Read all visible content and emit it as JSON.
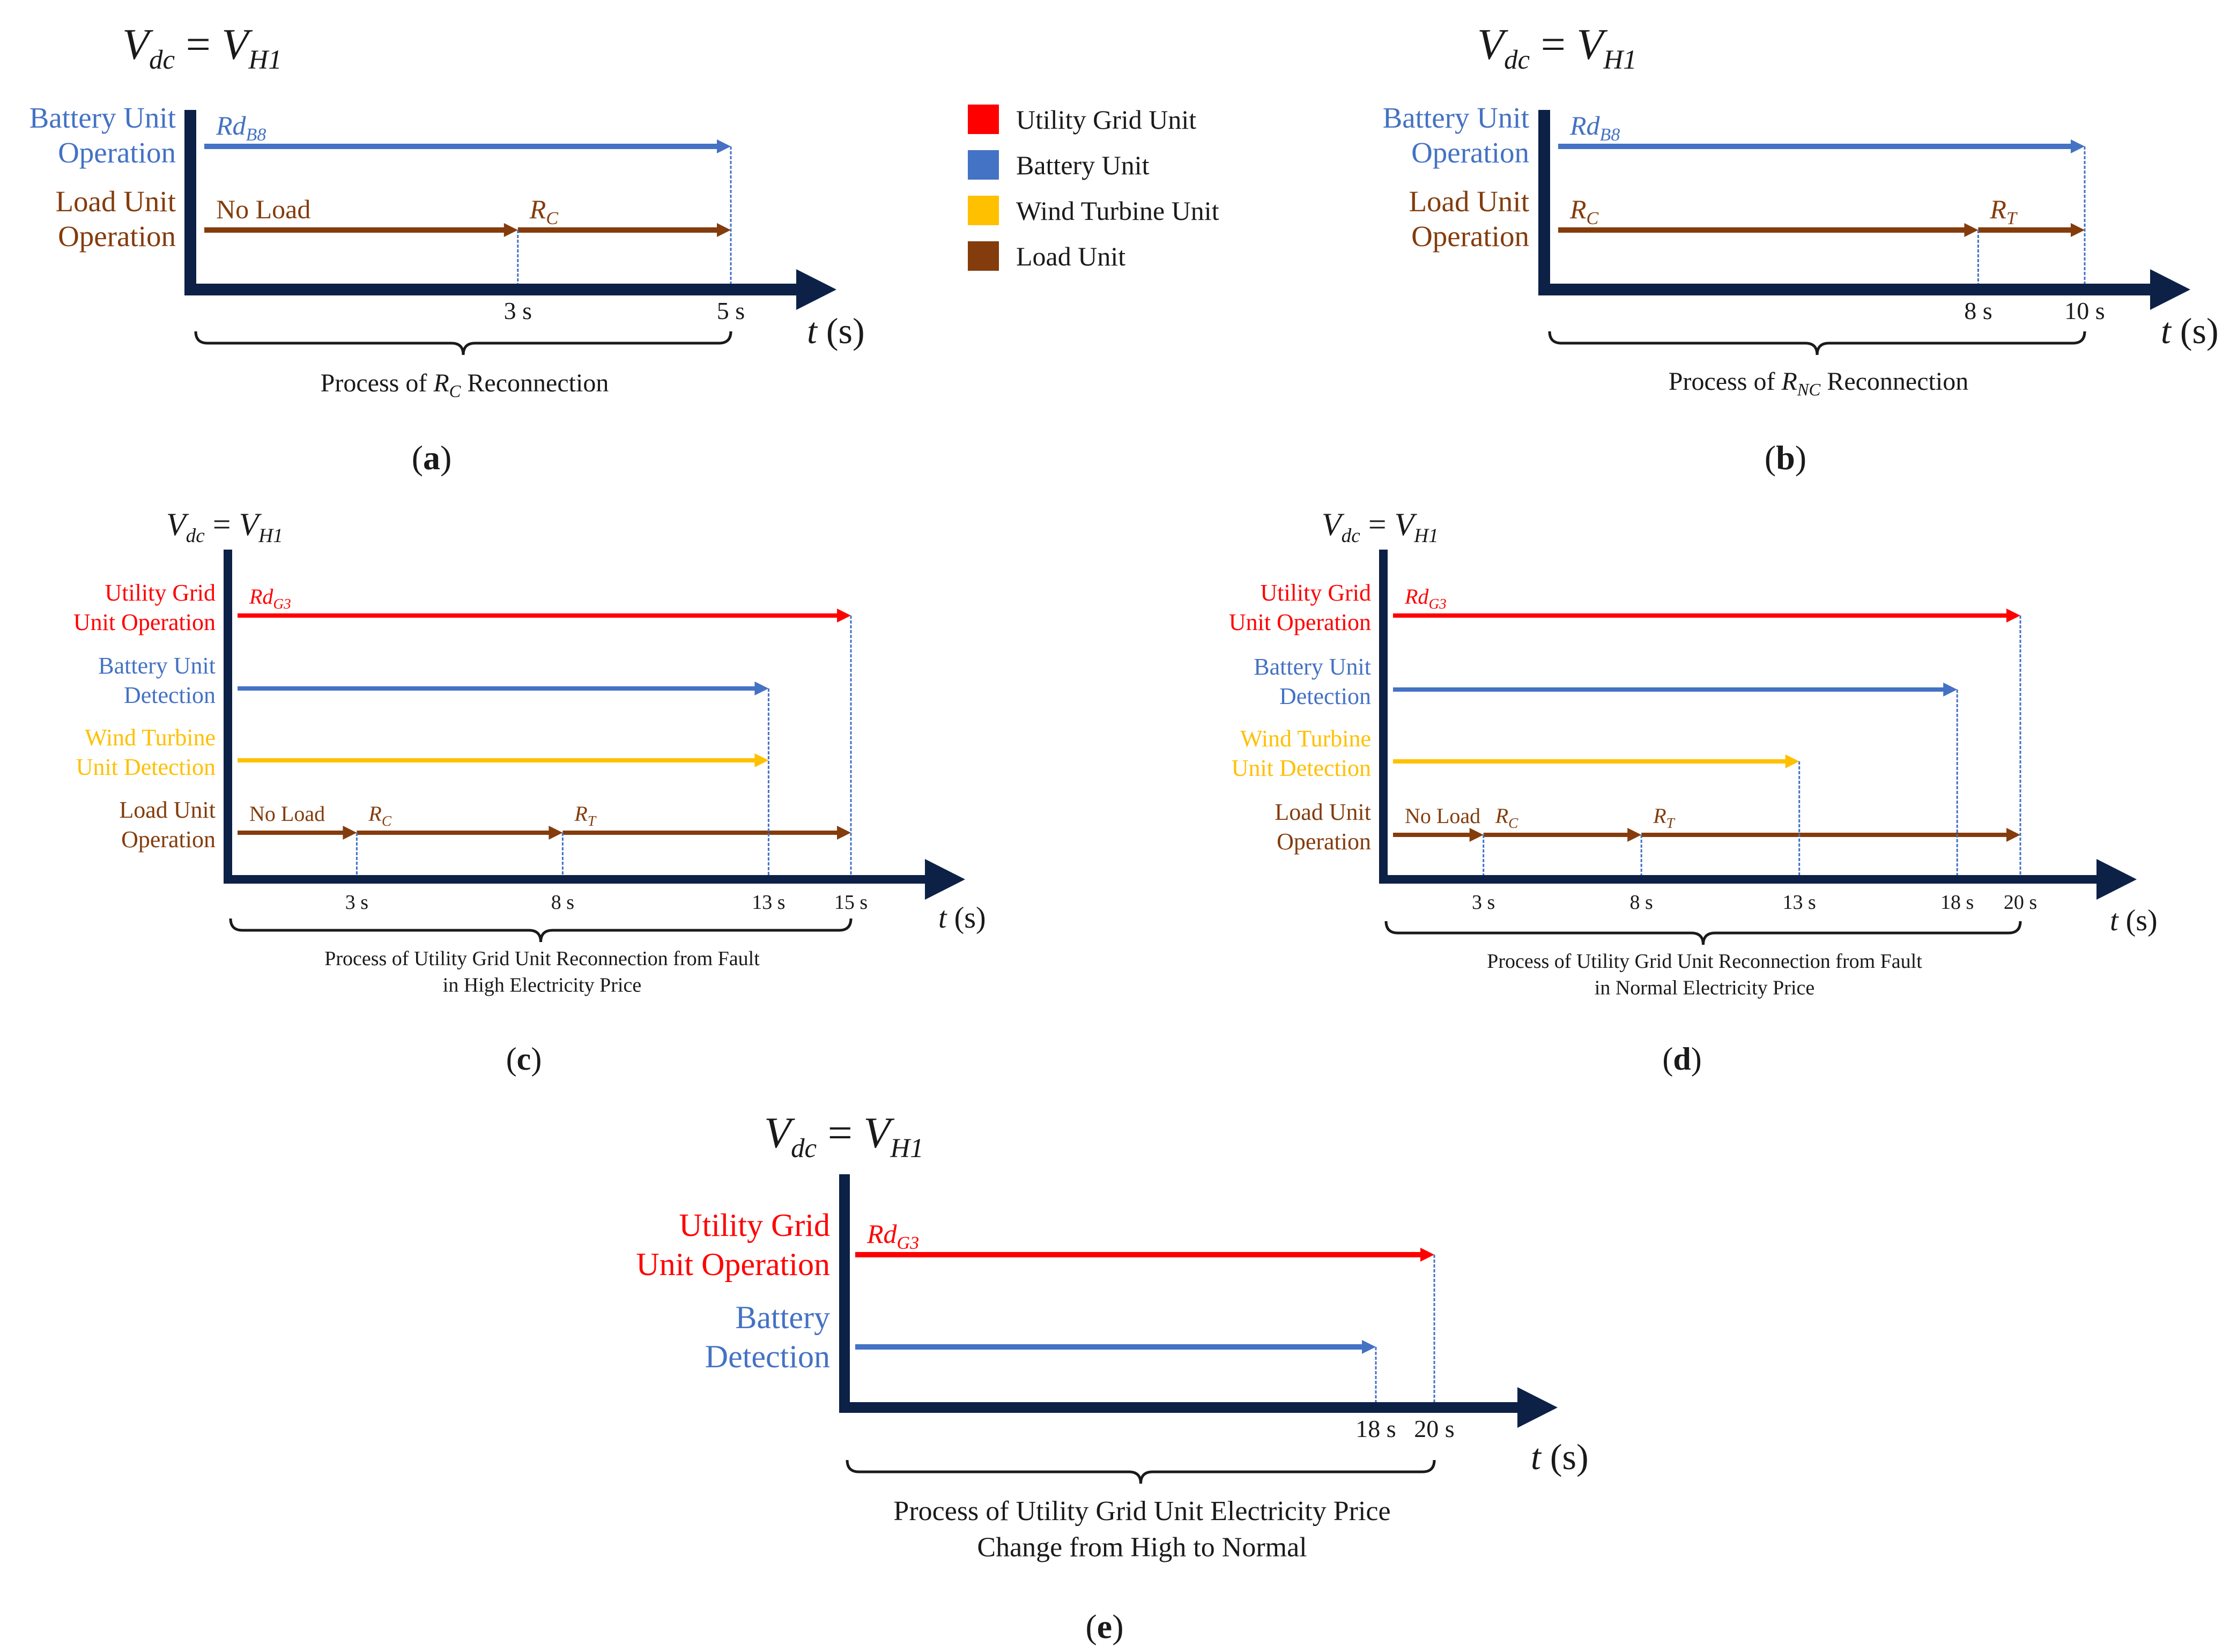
{
  "colors": {
    "axis": "#0d2147",
    "utility": "#ff0000",
    "battery": "#4472c4",
    "wind": "#ffc000",
    "load": "#843c0c",
    "text": "#1a1a1a"
  },
  "legend": [
    {
      "label": "Utility Grid Unit",
      "color": "utility"
    },
    {
      "label": "Battery Unit",
      "color": "battery"
    },
    {
      "label": "Wind Turbine Unit",
      "color": "wind"
    },
    {
      "label": "Load Unit",
      "color": "load"
    }
  ],
  "panels": [
    {
      "id": "a",
      "label": "(a)",
      "title_parts": {
        "v": "V",
        "vsub": "dc",
        "eq": " = ",
        "vh": "V",
        "vhsub": "H1"
      },
      "time_unit": "t (s)",
      "process_parts": [
        "Process of ",
        "R",
        "C",
        " Reconnection"
      ],
      "rows": [
        {
          "label": [
            "Battery Unit",
            "Operation"
          ],
          "color": "battery",
          "segments": [
            {
              "from": 0,
              "to": 5,
              "text": "Rd",
              "sub": "B8"
            }
          ]
        },
        {
          "label": [
            "Load Unit",
            "Operation"
          ],
          "color": "load",
          "segments": [
            {
              "from": 0,
              "to": 3,
              "text": "No Load",
              "sub": ""
            },
            {
              "from": 3,
              "to": 5,
              "text": "R",
              "sub": "C"
            }
          ]
        }
      ],
      "ticks": [
        {
          "t": 3,
          "label": "3 s"
        },
        {
          "t": 5,
          "label": "5 s"
        }
      ]
    },
    {
      "id": "b",
      "label": "(b)",
      "title_parts": {
        "v": "V",
        "vsub": "dc",
        "eq": " = ",
        "vh": "V",
        "vhsub": "H1"
      },
      "time_unit": "t (s)",
      "process_parts": [
        "Process of ",
        "R",
        "NC",
        " Reconnection"
      ],
      "rows": [
        {
          "label": [
            "Battery Unit",
            "Operation"
          ],
          "color": "battery",
          "segments": [
            {
              "from": 0,
              "to": 10,
              "text": "Rd",
              "sub": "B8"
            }
          ]
        },
        {
          "label": [
            "Load Unit",
            "Operation"
          ],
          "color": "load",
          "segments": [
            {
              "from": 0,
              "to": 8,
              "text": "R",
              "sub": "C"
            },
            {
              "from": 8,
              "to": 10,
              "text": "R",
              "sub": "T"
            }
          ]
        }
      ],
      "ticks": [
        {
          "t": 8,
          "label": "8 s"
        },
        {
          "t": 10,
          "label": "10 s"
        }
      ]
    },
    {
      "id": "c",
      "label": "(c)",
      "title_parts": {
        "v": "V",
        "vsub": "dc",
        "eq": " = ",
        "vh": "V",
        "vhsub": "H1"
      },
      "time_unit": "t (s)",
      "process_lines": [
        "Process of Utility Grid Unit Reconnection from Fault",
        "in High Electricity Price"
      ],
      "rows": [
        {
          "label": [
            "Utility Grid",
            "Unit Operation"
          ],
          "color": "utility",
          "segments": [
            {
              "from": 0,
              "to": 15,
              "text": "Rd",
              "sub": "G3"
            }
          ]
        },
        {
          "label": [
            "Battery Unit",
            "Detection"
          ],
          "color": "battery",
          "segments": [
            {
              "from": 0,
              "to": 13,
              "text": "",
              "sub": ""
            }
          ]
        },
        {
          "label": [
            "Wind Turbine",
            "Unit Detection"
          ],
          "color": "wind",
          "segments": [
            {
              "from": 0,
              "to": 13,
              "text": "",
              "sub": ""
            }
          ]
        },
        {
          "label": [
            "Load Unit",
            "Operation"
          ],
          "color": "load",
          "segments": [
            {
              "from": 0,
              "to": 3,
              "text": "No Load",
              "sub": ""
            },
            {
              "from": 3,
              "to": 8,
              "text": "R",
              "sub": "C"
            },
            {
              "from": 8,
              "to": 15,
              "text": "R",
              "sub": "T"
            }
          ]
        }
      ],
      "ticks": [
        {
          "t": 3,
          "label": "3 s"
        },
        {
          "t": 8,
          "label": "8 s"
        },
        {
          "t": 13,
          "label": "13 s"
        },
        {
          "t": 15,
          "label": "15 s"
        }
      ]
    },
    {
      "id": "d",
      "label": "(d)",
      "title_parts": {
        "v": "V",
        "vsub": "dc",
        "eq": " = ",
        "vh": "V",
        "vhsub": "H1"
      },
      "time_unit": "t (s)",
      "process_lines": [
        "Process of Utility Grid Unit Reconnection from Fault",
        "in Normal Electricity Price"
      ],
      "rows": [
        {
          "label": [
            "Utility Grid",
            "Unit Operation"
          ],
          "color": "utility",
          "segments": [
            {
              "from": 0,
              "to": 20,
              "text": "Rd",
              "sub": "G3"
            }
          ]
        },
        {
          "label": [
            "Battery Unit",
            "Detection"
          ],
          "color": "battery",
          "segments": [
            {
              "from": 0,
              "to": 18,
              "text": "",
              "sub": ""
            }
          ]
        },
        {
          "label": [
            "Wind Turbine",
            "Unit Detection"
          ],
          "color": "wind",
          "segments": [
            {
              "from": 0,
              "to": 13,
              "text": "",
              "sub": ""
            }
          ]
        },
        {
          "label": [
            "Load Unit",
            "Operation"
          ],
          "color": "load",
          "segments": [
            {
              "from": 0,
              "to": 3,
              "text": "No Load",
              "sub": ""
            },
            {
              "from": 3,
              "to": 8,
              "text": "R",
              "sub": "C"
            },
            {
              "from": 8,
              "to": 20,
              "text": "R",
              "sub": "T"
            }
          ]
        }
      ],
      "ticks": [
        {
          "t": 3,
          "label": "3 s"
        },
        {
          "t": 8,
          "label": "8 s"
        },
        {
          "t": 13,
          "label": "13 s"
        },
        {
          "t": 18,
          "label": "18 s"
        },
        {
          "t": 20,
          "label": "20 s"
        }
      ]
    },
    {
      "id": "e",
      "label": "(e)",
      "title_parts": {
        "v": "V",
        "vsub": "dc",
        "eq": " = ",
        "vh": "V",
        "vhsub": "H1"
      },
      "time_unit": "t (s)",
      "process_lines": [
        "Process of Utility Grid Unit Electricity Price",
        "Change from High to Normal"
      ],
      "rows": [
        {
          "label": [
            "Utility Grid",
            "Unit Operation"
          ],
          "color": "utility",
          "segments": [
            {
              "from": 0,
              "to": 20,
              "text": "Rd",
              "sub": "G3"
            }
          ]
        },
        {
          "label": [
            "Battery",
            "Detection"
          ],
          "color": "battery",
          "segments": [
            {
              "from": 0,
              "to": 18,
              "text": "",
              "sub": ""
            }
          ]
        }
      ],
      "ticks": [
        {
          "t": 18,
          "label": "18 s"
        },
        {
          "t": 20,
          "label": "20 s"
        }
      ]
    }
  ]
}
